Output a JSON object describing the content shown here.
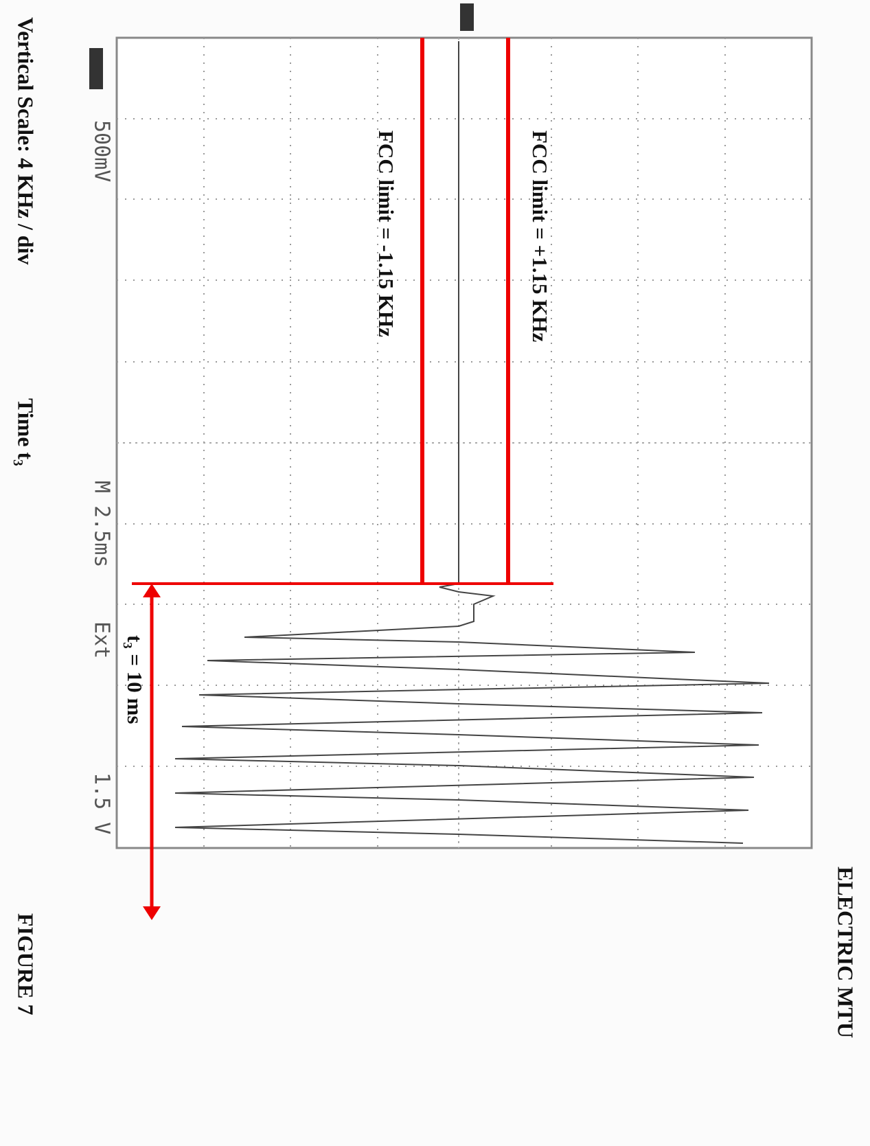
{
  "figure": {
    "vertical_scale": "Vertical Scale: 4 KHz / div",
    "time_label": "Time t₃",
    "figure_label": "FIGURE 7",
    "company": "ELECTRIC MTU",
    "scope": {
      "channel_scale": "500mV",
      "timebase": "M 2.5ms",
      "trigger_source": "Ext",
      "trigger_level": "1.5 V"
    },
    "annotations": {
      "upper_limit": "FCC limit = +1.15 KHz",
      "lower_limit": "FCC limit = -1.15 KHz",
      "duration": "t₃ = 10 ms"
    }
  }
}
